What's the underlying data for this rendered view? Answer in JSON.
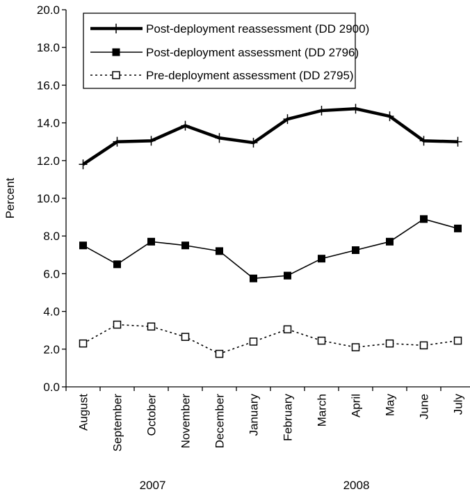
{
  "chart_data": {
    "type": "line",
    "title": "",
    "ylabel": "Percent",
    "xlabel": "",
    "ylim": [
      0,
      20
    ],
    "yticks": [
      "0.0",
      "2.0",
      "4.0",
      "6.0",
      "8.0",
      "10.0",
      "12.0",
      "14.0",
      "16.0",
      "18.0",
      "20.0"
    ],
    "categories": [
      "August",
      "September",
      "October",
      "November",
      "December",
      "January",
      "February",
      "March",
      "April",
      "May",
      "June",
      "July"
    ],
    "year_groups": [
      "2007",
      "2008"
    ],
    "legend_position": "top-left",
    "grid": false,
    "series": [
      {
        "name": "Post-deployment reassessment (DD 2900)",
        "style": "thick-line-plus-marker",
        "color": "#000000",
        "values": [
          11.8,
          13.0,
          13.05,
          13.85,
          13.2,
          12.95,
          14.2,
          14.65,
          14.75,
          14.35,
          13.05,
          13.0
        ]
      },
      {
        "name": "Post-deployment assessment (DD 2796)",
        "style": "solid-line-filled-square",
        "color": "#000000",
        "values": [
          7.5,
          6.5,
          7.7,
          7.5,
          7.2,
          5.75,
          5.9,
          6.8,
          7.25,
          7.7,
          8.9,
          8.4
        ]
      },
      {
        "name": "Pre-deployment assessment (DD 2795)",
        "style": "dotted-line-open-square",
        "color": "#000000",
        "values": [
          2.3,
          3.3,
          3.2,
          2.65,
          1.75,
          2.4,
          3.05,
          2.45,
          2.1,
          2.3,
          2.2,
          2.45
        ]
      }
    ]
  }
}
